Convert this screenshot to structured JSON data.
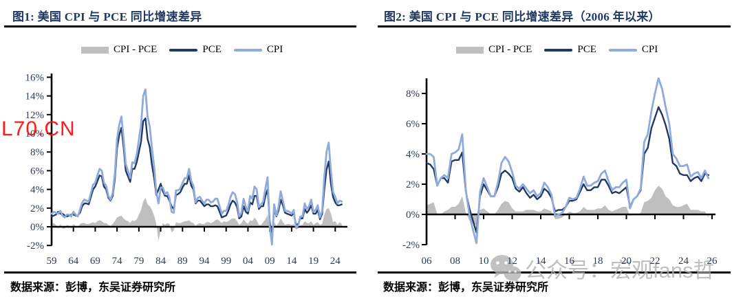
{
  "page": {
    "background": "#ffffff"
  },
  "watermarks": {
    "red_text": "L70.CN",
    "red_color": "#FF1010",
    "gray_text": "公众号：宏观fans哲",
    "gray_color": "#B0B0B0",
    "icon": "wechat-icon"
  },
  "figure1": {
    "source": "数据来源：彭博，东吴证券研究所"
  },
  "figure2": {
    "source": "数据来源：彭博，东吴证券研究所"
  },
  "chart_data": [
    {
      "type": "line",
      "title": "图1:  美国 CPI 与 PCE 同比增速差异",
      "legend": [
        "CPI - PCE",
        "PCE",
        "CPI"
      ],
      "legend_position": "top",
      "grid": false,
      "unit": "%",
      "xlim": [
        1959,
        2026.8
      ],
      "ylim": [
        -2,
        16
      ],
      "y_tick_values": [
        -2,
        0,
        2,
        4,
        6,
        8,
        10,
        12,
        14,
        16
      ],
      "y_tick_labels": [
        "-2%",
        "0%",
        "2%",
        "4%",
        "6%",
        "8%",
        "10%",
        "12%",
        "14%",
        "16%"
      ],
      "x_tick_values": [
        1959,
        1964,
        1969,
        1974,
        1979,
        1984,
        1989,
        1994,
        1999,
        2004,
        2009,
        2014,
        2019,
        2024
      ],
      "x_tick_labels": [
        "59",
        "64",
        "69",
        "74",
        "79",
        "84",
        "89",
        "94",
        "99",
        "04",
        "09",
        "14",
        "19",
        "24"
      ],
      "x_start": 1959.0,
      "x_step": 0.5,
      "series": [
        {
          "name": "CPI",
          "color": "#8FAADC",
          "values": [
            1.4,
            1.6,
            1.5,
            1.4,
            1.7,
            1.2,
            1.0,
            1.3,
            1.3,
            1.1,
            1.6,
            1.3,
            1.1,
            1.8,
            2.6,
            2.9,
            2.8,
            2.7,
            3.6,
            4.5,
            4.7,
            5.5,
            6.2,
            6.0,
            4.7,
            4.4,
            3.3,
            2.9,
            3.6,
            5.7,
            9.4,
            10.9,
            11.8,
            9.4,
            6.7,
            6.0,
            5.2,
            6.9,
            6.8,
            7.7,
            9.3,
            10.9,
            14.0,
            14.7,
            11.8,
            10.7,
            8.4,
            6.4,
            3.7,
            2.5,
            4.2,
            4.2,
            3.5,
            3.7,
            3.1,
            1.6,
            1.5,
            3.9,
            3.9,
            4.1,
            4.7,
            5.2,
            5.2,
            6.2,
            4.9,
            4.4,
            2.6,
            3.1,
            3.2,
            2.8,
            2.5,
            2.9,
            2.9,
            2.6,
            2.7,
            3.0,
            3.0,
            2.2,
            1.4,
            1.7,
            1.7,
            2.3,
            3.2,
            3.7,
            3.5,
            2.7,
            1.1,
            1.5,
            3.0,
            2.1,
            1.7,
            3.3,
            3.0,
            4.3,
            4.0,
            2.1,
            2.4,
            2.7,
            4.1,
            5.3,
            0.0,
            -1.9,
            2.4,
            1.2,
            2.1,
            3.8,
            2.8,
            1.7,
            1.7,
            1.6,
            1.4,
            1.8,
            -0.1,
            0.1,
            1.1,
            1.1,
            2.5,
            1.9,
            2.2,
            2.9,
            1.6,
            1.8,
            2.3,
            1.0,
            1.7,
            5.3,
            8.0,
            9.0,
            6.0,
            3.7,
            3.2,
            2.5,
            2.8,
            2.7
          ]
        },
        {
          "name": "PCE",
          "color": "#1F3864",
          "values": [
            1.1,
            1.2,
            1.3,
            1.6,
            1.4,
            1.4,
            1.2,
            1.1,
            1.2,
            1.3,
            1.3,
            1.2,
            1.2,
            1.5,
            2.2,
            2.5,
            2.5,
            2.4,
            3.2,
            4.0,
            4.3,
            4.9,
            5.5,
            5.4,
            4.3,
            4.0,
            3.1,
            2.8,
            3.3,
            5.1,
            8.4,
            9.8,
            10.6,
            8.5,
            6.0,
            5.4,
            4.8,
            6.2,
            6.2,
            6.9,
            8.0,
            9.1,
            11.3,
            11.6,
            9.4,
            8.5,
            6.6,
            5.2,
            3.4,
            4.0,
            4.6,
            3.8,
            3.3,
            3.3,
            2.8,
            2.2,
            1.9,
            3.4,
            3.5,
            3.7,
            4.2,
            4.6,
            4.6,
            5.5,
            4.4,
            4.0,
            2.5,
            2.8,
            2.8,
            2.5,
            2.2,
            2.4,
            2.4,
            2.2,
            2.2,
            2.3,
            2.2,
            1.6,
            1.0,
            1.1,
            1.2,
            1.7,
            2.4,
            2.8,
            2.6,
            2.1,
            0.9,
            1.1,
            2.2,
            1.6,
            1.4,
            2.6,
            2.4,
            3.3,
            3.3,
            1.9,
            2.2,
            2.2,
            3.3,
            4.0,
            0.6,
            -1.2,
            1.9,
            1.1,
            1.7,
            2.9,
            2.3,
            1.5,
            1.4,
            1.3,
            1.2,
            1.5,
            0.2,
            0.3,
            0.9,
            0.9,
            1.9,
            1.5,
            1.8,
            2.3,
            1.4,
            1.4,
            1.8,
            0.8,
            1.4,
            4.0,
            6.1,
            7.0,
            4.6,
            3.2,
            2.6,
            2.3,
            2.3,
            2.4
          ]
        },
        {
          "name": "CPI - PCE",
          "color": "#BFBFBF",
          "type": "area",
          "derived": "CPI minus PCE"
        }
      ]
    },
    {
      "type": "line",
      "title": "图2:  美国 CPI 与 PCE 同比增速差异（2006 年以来）",
      "legend": [
        "CPI - PCE",
        "PCE",
        "CPI"
      ],
      "legend_position": "top",
      "grid": false,
      "unit": "%",
      "xlim": [
        2006,
        2026.2
      ],
      "ylim": [
        -2,
        9
      ],
      "y_tick_values": [
        -2,
        0,
        2,
        4,
        6,
        8
      ],
      "y_tick_labels": [
        "-2%",
        "0%",
        "2%",
        "4%",
        "6%",
        "8%"
      ],
      "x_tick_values": [
        2006,
        2008,
        2010,
        2012,
        2014,
        2016,
        2018,
        2020,
        2022,
        2024,
        2026
      ],
      "x_tick_labels": [
        "06",
        "08",
        "10",
        "12",
        "14",
        "16",
        "18",
        "20",
        "22",
        "24",
        "26"
      ],
      "x_start": 2006.0,
      "x_step": 0.25,
      "series": [
        {
          "name": "CPI",
          "color": "#8FAADC",
          "values": [
            4.0,
            4.0,
            3.8,
            1.9,
            2.4,
            2.6,
            2.4,
            4.0,
            4.1,
            4.3,
            5.3,
            1.6,
            0.0,
            -1.0,
            -1.9,
            1.5,
            2.4,
            1.8,
            1.2,
            1.2,
            2.1,
            3.4,
            3.8,
            3.5,
            2.8,
            1.9,
            1.7,
            2.0,
            1.7,
            1.4,
            1.6,
            1.2,
            1.4,
            2.1,
            1.8,
            1.3,
            -0.1,
            0.0,
            0.1,
            0.5,
            1.1,
            1.0,
            1.1,
            1.7,
            2.5,
            1.9,
            1.9,
            2.1,
            2.2,
            2.7,
            2.9,
            2.2,
            1.6,
            1.8,
            1.8,
            2.1,
            2.3,
            0.4,
            1.0,
            1.2,
            1.7,
            4.8,
            5.3,
            6.8,
            8.0,
            9.0,
            8.3,
            7.1,
            6.0,
            4.0,
            3.7,
            3.2,
            3.2,
            3.3,
            2.5,
            2.7,
            2.8,
            2.4,
            2.9,
            2.4
          ]
        },
        {
          "name": "PCE",
          "color": "#1F3864",
          "values": [
            3.4,
            3.3,
            3.0,
            1.9,
            2.4,
            2.4,
            2.1,
            3.5,
            3.6,
            3.6,
            4.1,
            1.5,
            0.4,
            -0.4,
            -1.2,
            1.2,
            2.0,
            1.6,
            1.2,
            1.2,
            1.8,
            2.7,
            2.9,
            2.7,
            2.4,
            1.7,
            1.5,
            1.8,
            1.4,
            1.1,
            1.3,
            1.0,
            1.2,
            1.7,
            1.5,
            1.1,
            0.2,
            0.3,
            0.3,
            0.5,
            0.9,
            0.9,
            1.0,
            1.5,
            2.0,
            1.6,
            1.6,
            1.8,
            1.8,
            2.3,
            2.3,
            1.9,
            1.4,
            1.5,
            1.4,
            1.6,
            1.8,
            0.5,
            1.0,
            1.2,
            1.6,
            4.0,
            4.4,
            5.7,
            6.4,
            7.1,
            6.6,
            5.9,
            5.0,
            3.4,
            3.2,
            2.7,
            2.6,
            2.6,
            2.2,
            2.4,
            2.5,
            2.2,
            2.7,
            2.6
          ]
        },
        {
          "name": "CPI - PCE",
          "color": "#BFBFBF",
          "type": "area",
          "derived": "CPI minus PCE"
        }
      ]
    }
  ]
}
